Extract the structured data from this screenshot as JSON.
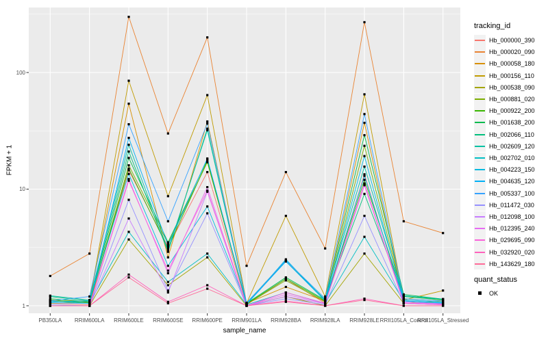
{
  "figure": {
    "background": "#FFFFFF",
    "panel_background": "#EBEBEB",
    "grid_color": "#FFFFFF",
    "axis_text_color": "#4D4D4D",
    "tick_mark_color": "#333333",
    "point_color": "#000000"
  },
  "chart_data": {
    "type": "line",
    "title": "",
    "xlabel": "sample_name",
    "ylabel": "FPKM + 1",
    "y_scale": "log10",
    "y_ticks": [
      1,
      10,
      100
    ],
    "y_minor_ticks": [
      3.162,
      31.62,
      316.2
    ],
    "ylim": [
      0.86,
      360
    ],
    "grid": "on",
    "legend_position": "right",
    "legend_title": "tracking_id",
    "legend2_title": "quant_status",
    "legend2_entries": [
      "OK"
    ],
    "marker": "square",
    "categories": [
      "PB350LA",
      "RRIM600LA",
      "RRIM600LE",
      "RRIM600SE",
      "RRIM600PE",
      "RRIM901LA",
      "RRIM928BA",
      "RRIM928LA",
      "RRIM928LE",
      "RRII105LA_Control",
      "RRII105LA_Stressed"
    ],
    "series": [
      {
        "name": "Hb_000000_390",
        "color": "#F8766D",
        "values": [
          1.05,
          1.02,
          14.5,
          3.2,
          14.0,
          1.02,
          1.7,
          1.05,
          13.4,
          1.05,
          1.02
        ]
      },
      {
        "name": "Hb_000020_090",
        "color": "#EA8331",
        "values": [
          1.8,
          2.8,
          300,
          30.0,
          200,
          2.2,
          14.0,
          3.1,
          270,
          5.3,
          4.2
        ]
      },
      {
        "name": "Hb_000058_180",
        "color": "#D89000",
        "values": [
          1.1,
          1.1,
          54.0,
          2.6,
          38.0,
          1.05,
          1.45,
          1.1,
          37.0,
          1.1,
          1.05
        ]
      },
      {
        "name": "Hb_000156_110",
        "color": "#C09B00",
        "values": [
          1.05,
          1.08,
          85.0,
          8.7,
          64.0,
          1.05,
          5.9,
          1.2,
          65.0,
          1.12,
          1.35
        ]
      },
      {
        "name": "Hb_000538_090",
        "color": "#A3A500",
        "values": [
          1.0,
          1.0,
          3.7,
          1.5,
          2.6,
          1.0,
          1.2,
          1.0,
          2.8,
          1.05,
          1.1
        ]
      },
      {
        "name": "Hb_000881_020",
        "color": "#7CAE00",
        "values": [
          1.1,
          1.05,
          16.0,
          3.4,
          17.0,
          1.03,
          1.65,
          1.08,
          23.5,
          1.15,
          1.1
        ]
      },
      {
        "name": "Hb_000922_200",
        "color": "#39B600",
        "values": [
          1.12,
          1.06,
          15.0,
          3.1,
          17.5,
          1.04,
          1.7,
          1.1,
          12.0,
          1.2,
          1.12
        ]
      },
      {
        "name": "Hb_001638_200",
        "color": "#00BB4E",
        "values": [
          1.15,
          1.08,
          18.5,
          3.5,
          18.0,
          1.05,
          1.75,
          1.12,
          29.0,
          1.25,
          1.14
        ]
      },
      {
        "name": "Hb_002066_110",
        "color": "#00BF7D",
        "values": [
          1.2,
          1.1,
          21.0,
          2.9,
          33.0,
          1.05,
          2.4,
          1.12,
          9.1,
          1.2,
          1.13
        ]
      },
      {
        "name": "Hb_002609_120",
        "color": "#00C1A3",
        "values": [
          1.22,
          1.12,
          24.0,
          3.0,
          32.0,
          1.06,
          2.45,
          1.15,
          15.6,
          1.22,
          1.14
        ]
      },
      {
        "name": "Hb_002702_010",
        "color": "#00BFC4",
        "values": [
          1.1,
          1.05,
          4.3,
          1.6,
          2.8,
          1.02,
          1.3,
          1.05,
          3.9,
          1.1,
          1.05
        ]
      },
      {
        "name": "Hb_004223_150",
        "color": "#00BAE0",
        "values": [
          1.08,
          1.1,
          13.5,
          2.2,
          7.1,
          1.03,
          2.5,
          1.1,
          19.2,
          1.12,
          1.08
        ]
      },
      {
        "name": "Hb_004635_120",
        "color": "#00B0F6",
        "values": [
          1.06,
          1.05,
          27.5,
          3.3,
          18.3,
          1.03,
          2.4,
          1.1,
          13.0,
          1.1,
          1.06
        ]
      },
      {
        "name": "Hb_005337_100",
        "color": "#35A2FF",
        "values": [
          1.1,
          1.2,
          36.0,
          5.3,
          36.5,
          1.05,
          2.45,
          1.15,
          44.0,
          1.15,
          1.1
        ]
      },
      {
        "name": "Hb_011472_030",
        "color": "#9590FF",
        "values": [
          1.02,
          1.0,
          8.1,
          1.35,
          6.2,
          1.0,
          1.15,
          1.02,
          5.9,
          1.05,
          1.02
        ]
      },
      {
        "name": "Hb_012098_100",
        "color": "#C77CFF",
        "values": [
          1.0,
          1.0,
          5.6,
          1.3,
          9.5,
          1.0,
          1.2,
          1.04,
          10.8,
          1.08,
          1.04
        ]
      },
      {
        "name": "Hb_012395_240",
        "color": "#E76BF3",
        "values": [
          1.0,
          1.0,
          12.2,
          1.9,
          10.4,
          1.0,
          1.25,
          1.05,
          11.2,
          1.06,
          1.03
        ]
      },
      {
        "name": "Hb_029695_090",
        "color": "#FA62DB",
        "values": [
          1.0,
          1.0,
          11.8,
          2.0,
          9.7,
          1.0,
          1.3,
          1.05,
          10.9,
          1.05,
          1.02
        ]
      },
      {
        "name": "Hb_032920_020",
        "color": "#FF62BC",
        "values": [
          1.0,
          1.0,
          1.85,
          1.08,
          1.5,
          1.0,
          1.1,
          1.0,
          1.15,
          1.0,
          1.0
        ]
      },
      {
        "name": "Hb_143629_180",
        "color": "#FF6A98",
        "values": [
          1.0,
          1.0,
          1.75,
          1.05,
          1.4,
          1.0,
          1.08,
          1.0,
          1.12,
          1.0,
          1.0
        ]
      }
    ]
  }
}
